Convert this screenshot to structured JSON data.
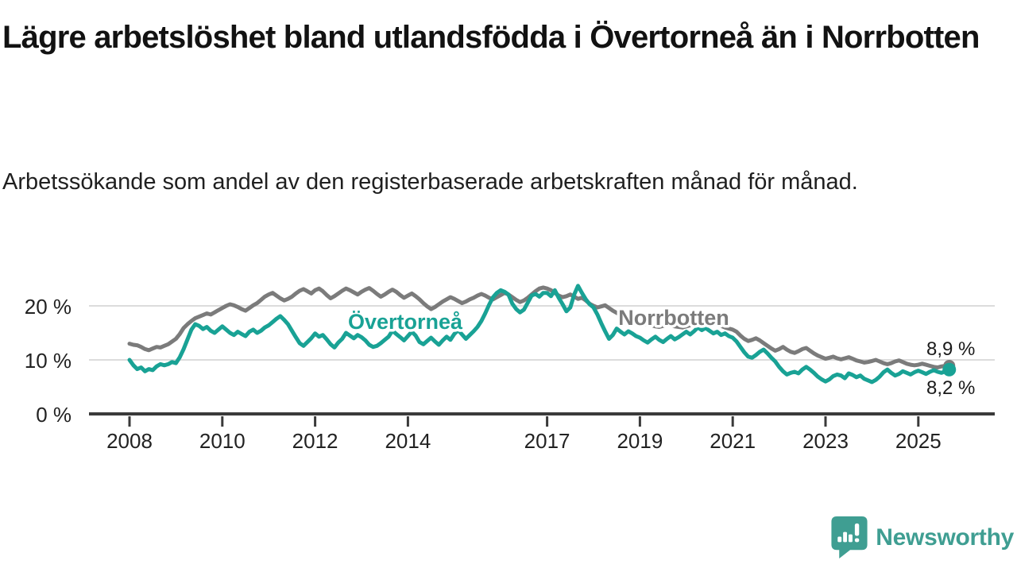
{
  "header": {
    "title": "Lägre arbetslöshet bland utlandsfödda i Övertorneå än i Norrbotten",
    "subtitle": "Arbetssökande som andel av den registerbaserade arbetskraften månad för månad."
  },
  "footer": {
    "brand": "Newsworthy",
    "logo_color": "#3f9e92"
  },
  "colors": {
    "overtornea": "#19a295",
    "norrbotten": "#7b7b7b",
    "axis": "#3a3a3a",
    "gridline": "#dcdcdc",
    "text": "#1a1a1a"
  },
  "chart_data": {
    "type": "line",
    "title": "Lägre arbetslöshet bland utlandsfödda i Övertorneå än i Norrbotten",
    "subtitle": "Arbetssökande som andel av den registerbaserade arbetskraften månad för månad.",
    "frequency": "monthly",
    "x_start": {
      "year": 2008,
      "month": 1
    },
    "x_end": {
      "year": 2025,
      "month": 9
    },
    "ylim": [
      0,
      25
    ],
    "grid": "horizontal",
    "legend_position": "inline-labels",
    "y_ticks": [
      {
        "value": 0,
        "label": "0 %"
      },
      {
        "value": 10,
        "label": "10 %"
      },
      {
        "value": 20,
        "label": "20 %"
      }
    ],
    "x_ticks": [
      {
        "year": 2008,
        "label": "2008"
      },
      {
        "year": 2010,
        "label": "2010"
      },
      {
        "year": 2012,
        "label": "2012"
      },
      {
        "year": 2014,
        "label": "2014"
      },
      {
        "year": 2017,
        "label": "2017"
      },
      {
        "year": 2019,
        "label": "2019"
      },
      {
        "year": 2021,
        "label": "2021"
      },
      {
        "year": 2023,
        "label": "2023"
      },
      {
        "year": 2025,
        "label": "2025"
      }
    ],
    "series": [
      {
        "name": "Övertorneå",
        "color": "#19a295",
        "end_label": "8,2 %",
        "end_value": 8.2,
        "values": [
          10.0,
          9.0,
          8.3,
          8.6,
          7.9,
          8.3,
          8.1,
          8.8,
          9.2,
          9.0,
          9.2,
          9.6,
          9.4,
          10.5,
          12.0,
          13.8,
          15.6,
          16.6,
          16.3,
          15.7,
          16.1,
          15.4,
          15.0,
          15.6,
          16.2,
          15.6,
          15.0,
          14.6,
          15.2,
          14.8,
          14.4,
          15.2,
          15.6,
          15.0,
          15.4,
          16.0,
          16.4,
          17.0,
          17.6,
          18.1,
          17.4,
          16.6,
          15.4,
          14.2,
          13.1,
          12.6,
          13.3,
          14.0,
          14.9,
          14.3,
          14.6,
          13.8,
          12.9,
          12.3,
          13.2,
          13.9,
          15.0,
          14.5,
          14.0,
          14.6,
          14.2,
          13.6,
          12.8,
          12.4,
          12.6,
          13.1,
          13.7,
          14.3,
          15.4,
          14.8,
          14.2,
          13.6,
          14.4,
          15.2,
          14.5,
          13.3,
          12.9,
          13.5,
          14.1,
          13.4,
          12.8,
          13.6,
          14.3,
          13.7,
          14.8,
          15.5,
          14.7,
          13.9,
          14.6,
          15.3,
          16.1,
          17.2,
          18.6,
          20.2,
          21.6,
          22.4,
          22.9,
          22.6,
          22.1,
          20.4,
          19.4,
          18.8,
          19.3,
          20.6,
          21.9,
          22.2,
          21.7,
          22.4,
          22.4,
          21.8,
          22.9,
          21.5,
          20.3,
          19.0,
          19.7,
          22.1,
          23.7,
          22.4,
          21.2,
          20.3,
          19.7,
          18.4,
          16.8,
          15.3,
          13.9,
          14.6,
          15.8,
          15.2,
          14.7,
          15.3,
          14.9,
          14.4,
          14.1,
          13.6,
          13.2,
          13.8,
          14.3,
          13.7,
          13.3,
          13.9,
          14.4,
          13.8,
          14.2,
          14.7,
          15.2,
          14.7,
          15.3,
          16.0,
          15.5,
          15.9,
          15.4,
          14.9,
          15.2,
          14.6,
          14.9,
          14.4,
          14.1,
          13.4,
          12.4,
          11.4,
          10.6,
          10.4,
          10.9,
          11.5,
          11.9,
          11.2,
          10.4,
          9.7,
          8.7,
          7.9,
          7.3,
          7.6,
          7.8,
          7.5,
          8.2,
          8.7,
          8.2,
          7.6,
          6.9,
          6.4,
          6.0,
          6.4,
          7.0,
          7.3,
          7.1,
          6.6,
          7.5,
          7.2,
          6.8,
          7.1,
          6.5,
          6.2,
          5.9,
          6.3,
          6.9,
          7.7,
          8.2,
          7.6,
          7.1,
          7.4,
          7.9,
          7.6,
          7.3,
          7.7,
          8.0,
          7.7,
          7.4,
          7.8,
          8.1,
          7.8,
          7.6,
          7.9,
          8.2
        ]
      },
      {
        "name": "Norrbotten",
        "color": "#7b7b7b",
        "end_label": "8,9 %",
        "end_value": 8.9,
        "values": [
          13.0,
          12.8,
          12.7,
          12.4,
          12.0,
          11.8,
          12.1,
          12.4,
          12.3,
          12.6,
          12.9,
          13.4,
          13.9,
          14.8,
          15.9,
          16.6,
          17.2,
          17.7,
          18.0,
          18.3,
          18.6,
          18.4,
          18.8,
          19.2,
          19.6,
          20.0,
          20.3,
          20.1,
          19.8,
          19.4,
          19.1,
          19.6,
          20.1,
          20.5,
          21.1,
          21.7,
          22.1,
          22.4,
          21.9,
          21.4,
          21.0,
          21.3,
          21.7,
          22.3,
          22.8,
          23.1,
          22.7,
          22.3,
          22.9,
          23.2,
          22.7,
          22.0,
          21.4,
          21.8,
          22.3,
          22.8,
          23.2,
          22.9,
          22.5,
          22.1,
          22.6,
          23.0,
          23.3,
          22.8,
          22.2,
          21.7,
          22.1,
          22.6,
          23.0,
          22.6,
          22.0,
          21.5,
          21.9,
          22.3,
          21.8,
          21.2,
          20.5,
          19.9,
          19.4,
          19.8,
          20.3,
          20.8,
          21.2,
          21.6,
          21.3,
          20.9,
          20.5,
          20.8,
          21.2,
          21.5,
          21.9,
          22.2,
          21.9,
          21.5,
          21.2,
          21.6,
          22.0,
          22.4,
          22.1,
          21.6,
          21.1,
          20.7,
          21.0,
          21.5,
          22.1,
          22.7,
          23.2,
          23.4,
          23.2,
          22.9,
          22.4,
          21.9,
          21.6,
          21.8,
          22.1,
          21.7,
          21.3,
          21.5,
          21.0,
          20.4,
          20.0,
          19.7,
          19.9,
          20.1,
          19.6,
          19.1,
          18.7,
          18.3,
          17.9,
          17.6,
          17.3,
          17.1,
          16.9,
          16.7,
          16.5,
          16.4,
          16.2,
          16.1,
          16.3,
          16.5,
          16.4,
          16.2,
          16.1,
          16.0,
          16.2,
          16.4,
          16.8,
          17.3,
          17.6,
          17.4,
          17.1,
          16.9,
          16.6,
          16.3,
          16.0,
          15.8,
          15.6,
          15.2,
          14.5,
          13.9,
          13.5,
          13.7,
          14.0,
          13.6,
          13.1,
          12.6,
          12.1,
          11.7,
          12.0,
          12.4,
          11.9,
          11.5,
          11.3,
          11.6,
          12.0,
          12.2,
          11.7,
          11.2,
          10.8,
          10.5,
          10.2,
          10.4,
          10.6,
          10.3,
          10.1,
          10.3,
          10.5,
          10.2,
          9.9,
          9.7,
          9.5,
          9.6,
          9.8,
          10.0,
          9.7,
          9.4,
          9.2,
          9.4,
          9.7,
          9.9,
          9.6,
          9.3,
          9.1,
          9.0,
          9.1,
          9.3,
          9.1,
          8.9,
          8.7,
          8.6,
          8.8,
          8.9,
          8.9
        ]
      }
    ]
  }
}
